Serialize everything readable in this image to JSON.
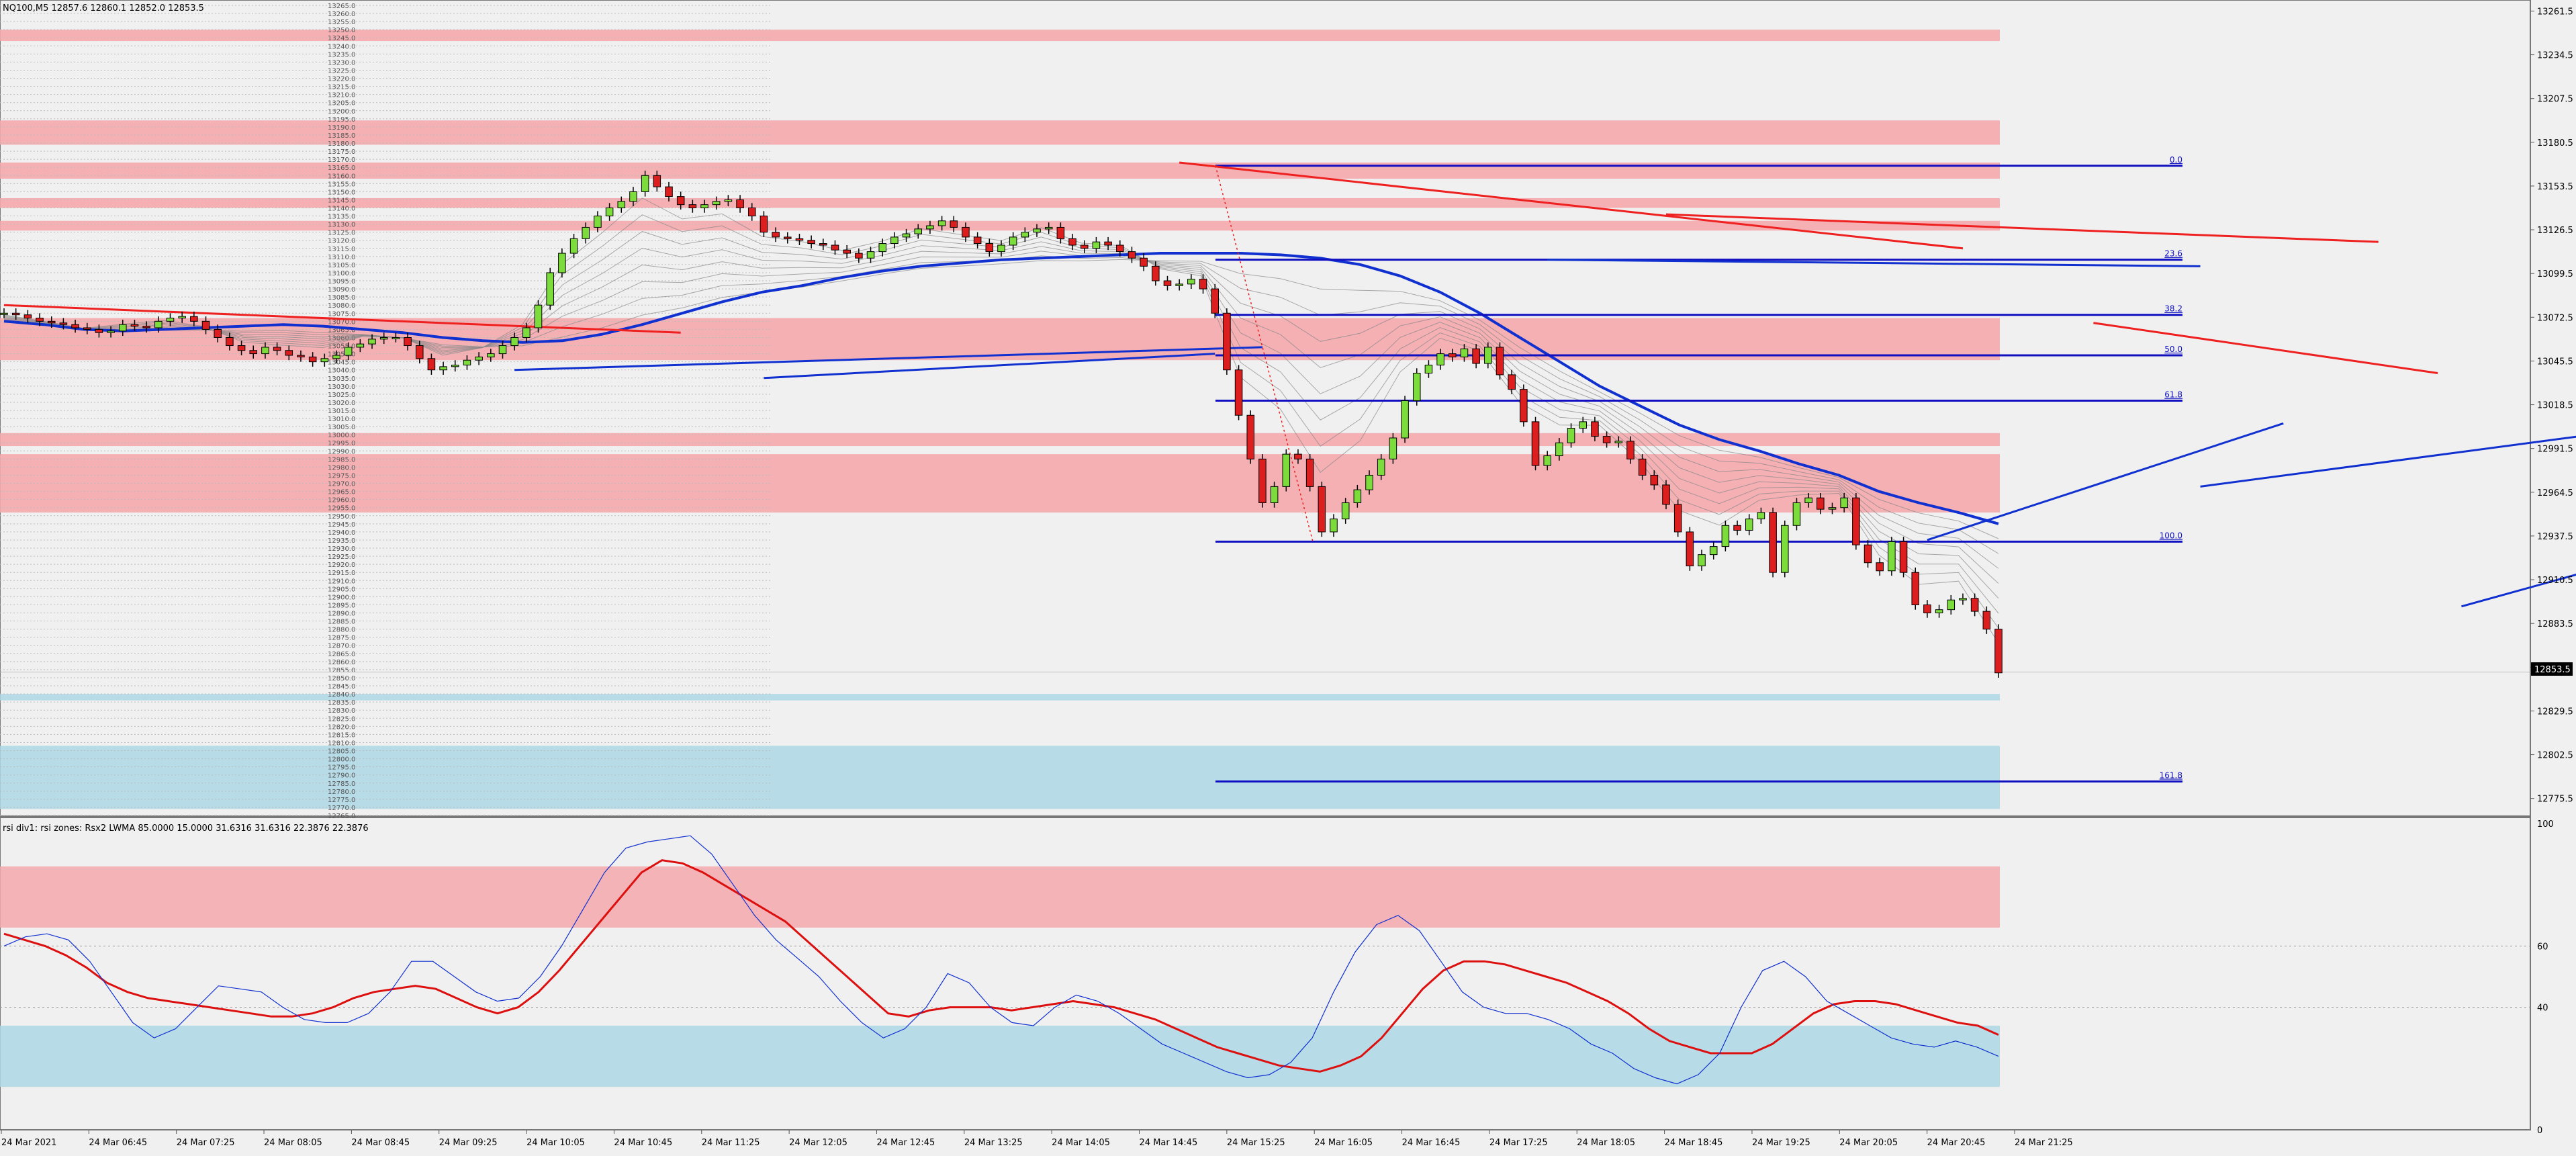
{
  "symbol_header": "NQ100,M5  12857.6 12860.1 12852.0 12853.5",
  "indicator_header": "rsi div1: rsi zones: Rsx2 LWMA 85.0000 15.0000 31.6316 31.6316 22.3876 22.3876",
  "current_price_label": "12853.5",
  "colors": {
    "background": "#f0f0f0",
    "bull_candle": "#7cdc3c",
    "bear_candle": "#dc1e1e",
    "resistance_zone": "#f5a8ad",
    "support_zone": "#add8e6",
    "fib_line": "#1010c0",
    "trend_red": "#ee2020",
    "trend_blue": "#1030d0",
    "ma_main": "#1030d0"
  },
  "chart_data": [
    {
      "type": "candlestick",
      "title": "NQ100,M5",
      "ylim": [
        12765,
        13265
      ],
      "y_ticks": [
        "13261.5",
        "13234.5",
        "13207.5",
        "13180.5",
        "13153.5",
        "13126.5",
        "13099.5",
        "13072.5",
        "13045.5",
        "13018.5",
        "12991.5",
        "12964.5",
        "12937.5",
        "12910.5",
        "12883.5",
        "12856.5",
        "12829.5",
        "12802.5",
        "12775.5"
      ],
      "x_ticks": [
        "24 Mar 2021",
        "24 Mar 06:45",
        "24 Mar 07:25",
        "24 Mar 08:05",
        "24 Mar 08:45",
        "24 Mar 09:25",
        "24 Mar 10:05",
        "24 Mar 10:45",
        "24 Mar 11:25",
        "24 Mar 12:05",
        "24 Mar 12:45",
        "24 Mar 13:25",
        "24 Mar 14:05",
        "24 Mar 14:45",
        "24 Mar 15:25",
        "24 Mar 16:05",
        "24 Mar 16:45",
        "24 Mar 17:25",
        "24 Mar 18:05",
        "24 Mar 18:45",
        "24 Mar 19:25",
        "24 Mar 20:05",
        "24 Mar 20:45",
        "24 Mar 21:25"
      ],
      "close": [
        13075,
        13074,
        13072,
        13070,
        13069,
        13068,
        13066,
        13065,
        13063,
        13064,
        13068,
        13067,
        13066,
        13070,
        13072,
        13073,
        13070,
        13065,
        13060,
        13055,
        13052,
        13050,
        13054,
        13052,
        13049,
        13048,
        13045,
        13047,
        13049,
        13054,
        13056,
        13059,
        13060,
        13060,
        13055,
        13047,
        13040,
        13042,
        13043,
        13046,
        13048,
        13050,
        13055,
        13060,
        13066,
        13080,
        13100,
        13112,
        13121,
        13128,
        13135,
        13140,
        13144,
        13150,
        13160,
        13153,
        13147,
        13142,
        13140,
        13142,
        13144,
        13145,
        13140,
        13135,
        13125,
        13122,
        13121,
        13120,
        13118,
        13117,
        13114,
        13112,
        13109,
        13113,
        13118,
        13122,
        13124,
        13127,
        13129,
        13132,
        13128,
        13122,
        13118,
        13113,
        13117,
        13122,
        13125,
        13127,
        13128,
        13121,
        13117,
        13115,
        13119,
        13117,
        13113,
        13109,
        13104,
        13095,
        13092,
        13093,
        13096,
        13090,
        13075,
        13040,
        13012,
        12985,
        12958,
        12968,
        12988,
        12985,
        12968,
        12940,
        12948,
        12958,
        12966,
        12975,
        12985,
        12998,
        13021,
        13038,
        13043,
        13050,
        13048,
        13053,
        13044,
        13054,
        13037,
        13028,
        13008,
        12981,
        12987,
        12995,
        13004,
        13008,
        12999,
        12995,
        12996,
        12985,
        12975,
        12969,
        12957,
        12940,
        12919,
        12926,
        12931,
        12944,
        12941,
        12948,
        12952,
        12915,
        12944,
        12958,
        12961,
        12954,
        12955,
        12961,
        12932,
        12921,
        12916,
        12934,
        12915,
        12895,
        12890,
        12892,
        12898,
        12899,
        12891,
        12880,
        12853
      ],
      "ma_main": [
        13070,
        13068,
        13065,
        13064,
        13065,
        13066,
        13067,
        13068,
        13067,
        13065,
        13063,
        13060,
        13058,
        13057,
        13058,
        13062,
        13068,
        13075,
        13082,
        13088,
        13092,
        13097,
        13101,
        13104,
        13106,
        13108,
        13109,
        13110,
        13111,
        13112,
        13112,
        13112,
        13111,
        13109,
        13105,
        13098,
        13088,
        13075,
        13060,
        13045,
        13030,
        13018,
        13006,
        12997,
        12990,
        12982,
        12975,
        12965,
        12958,
        12952,
        12945
      ],
      "resistance_zones": [
        [
          13243,
          13250
        ],
        [
          13179,
          13194
        ],
        [
          13158,
          13168
        ],
        [
          13140,
          13146
        ],
        [
          13126,
          13132
        ],
        [
          13046,
          13072
        ],
        [
          12993,
          13001
        ],
        [
          12952,
          12988
        ]
      ],
      "support_zones": [
        [
          12836,
          12840
        ],
        [
          12769,
          12808
        ]
      ],
      "fib_levels": [
        {
          "label": "0.0",
          "price": 13166
        },
        {
          "label": "23.6",
          "price": 13108
        },
        {
          "label": "38.2",
          "price": 13074
        },
        {
          "label": "50.0",
          "price": 13049
        },
        {
          "label": "61.8",
          "price": 13021
        },
        {
          "label": "100.0",
          "price": 12934
        },
        {
          "label": "161.8",
          "price": 12786
        }
      ]
    },
    {
      "type": "line",
      "title": "rsi div1: rsi zones: Rsx2 LWMA 85.0000 15.0000 31.6316 31.6316 22.3876 22.3876",
      "ylim": [
        0,
        100
      ],
      "y_ticks": [
        "100",
        "60",
        "40",
        "0"
      ],
      "zones": [
        [
          66,
          86
        ],
        [
          14,
          34
        ]
      ],
      "series": [
        {
          "color": "#dd1010",
          "values": [
            64,
            62,
            60,
            57,
            53,
            48,
            45,
            43,
            42,
            41,
            40,
            39,
            38,
            37,
            37,
            38,
            40,
            43,
            45,
            46,
            47,
            46,
            43,
            40,
            38,
            40,
            45,
            52,
            60,
            68,
            76,
            84,
            88,
            87,
            84,
            80,
            76,
            72,
            68,
            62,
            56,
            50,
            44,
            38,
            37,
            39,
            40,
            40,
            40,
            39,
            40,
            41,
            42,
            41,
            40,
            38,
            36,
            33,
            30,
            27,
            25,
            23,
            21,
            20,
            19,
            21,
            24,
            30,
            38,
            46,
            52,
            55,
            55,
            54,
            52,
            50,
            48,
            45,
            42,
            38,
            33,
            29,
            27,
            25,
            25,
            25,
            28,
            33,
            38,
            41,
            42,
            42,
            41,
            39,
            37,
            35,
            34,
            31
          ]
        },
        {
          "color": "#1030d0",
          "values": [
            60,
            63,
            64,
            62,
            55,
            45,
            35,
            30,
            33,
            40,
            47,
            46,
            45,
            40,
            36,
            35,
            35,
            38,
            45,
            55,
            55,
            50,
            45,
            42,
            43,
            50,
            60,
            72,
            84,
            92,
            94,
            95,
            96,
            90,
            80,
            70,
            62,
            56,
            50,
            42,
            35,
            30,
            33,
            40,
            51,
            48,
            40,
            35,
            34,
            40,
            44,
            42,
            38,
            33,
            28,
            25,
            22,
            19,
            17,
            18,
            22,
            30,
            45,
            58,
            67,
            70,
            65,
            55,
            45,
            40,
            38,
            38,
            36,
            33,
            28,
            25,
            20,
            17,
            15,
            18,
            25,
            40,
            52,
            55,
            50,
            42,
            38,
            34,
            30,
            28,
            27,
            29,
            27,
            24
          ]
        }
      ]
    }
  ]
}
